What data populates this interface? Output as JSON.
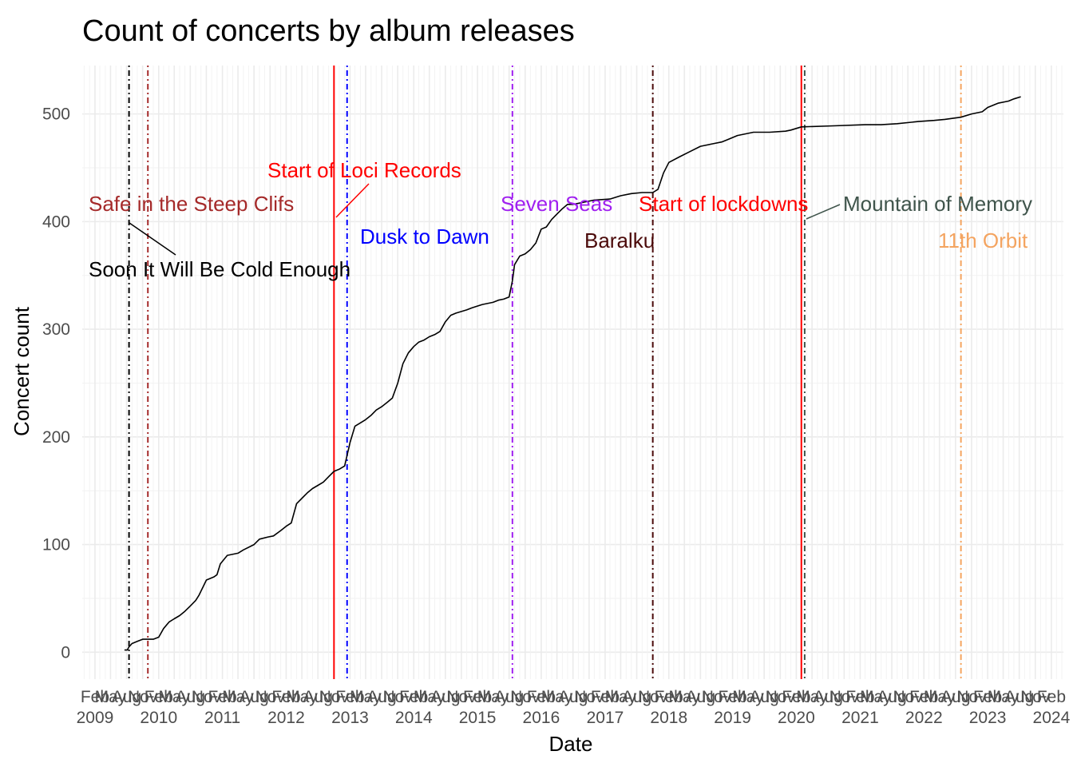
{
  "chart_data": {
    "type": "line",
    "title": "Count of concerts by album releases",
    "xlabel": "Date",
    "ylabel": "Concert count",
    "ylim": [
      -25,
      545
    ],
    "xlim": [
      "2008-11-20",
      "2024-04-10"
    ],
    "grid": true,
    "y_ticks": [
      0,
      100,
      200,
      300,
      400,
      500
    ],
    "x_major_ticks": [
      "2009",
      "2010",
      "2011",
      "2012",
      "2013",
      "2014",
      "2015",
      "2016",
      "2017",
      "2018",
      "2019",
      "2020",
      "2021",
      "2022",
      "2023",
      "2024"
    ],
    "x_month_ticks": [
      "Feb",
      "May",
      "Aug",
      "Nov"
    ],
    "series": [
      {
        "color": "#000000",
        "x": [
          "2009-07-20",
          "2009-08-05",
          "2009-08-15",
          "2009-09-01",
          "2009-10-01",
          "2009-11-01",
          "2009-12-01",
          "2010-01-01",
          "2010-02-01",
          "2010-03-01",
          "2010-04-01",
          "2010-05-01",
          "2010-06-01",
          "2010-07-01",
          "2010-08-01",
          "2010-09-01",
          "2010-09-20",
          "2010-11-01",
          "2010-12-15",
          "2011-01-01",
          "2011-01-20",
          "2011-03-01",
          "2011-05-01",
          "2011-06-01",
          "2011-08-01",
          "2011-09-01",
          "2011-10-20",
          "2011-11-20",
          "2012-01-01",
          "2012-02-01",
          "2012-03-01",
          "2012-04-01",
          "2012-06-01",
          "2012-07-01",
          "2012-08-01",
          "2012-09-01",
          "2012-10-01",
          "2012-11-01",
          "2012-12-01",
          "2013-01-01",
          "2013-02-01",
          "2013-03-01",
          "2013-04-01",
          "2013-05-01",
          "2013-06-01",
          "2013-07-01",
          "2013-08-01",
          "2013-09-01",
          "2013-10-01",
          "2013-11-01",
          "2013-12-01",
          "2014-01-01",
          "2014-02-01",
          "2014-03-01",
          "2014-04-01",
          "2014-05-01",
          "2014-06-01",
          "2014-07-01",
          "2014-08-01",
          "2014-09-01",
          "2014-10-01",
          "2014-12-01",
          "2015-01-01",
          "2015-03-01",
          "2015-05-01",
          "2015-06-01",
          "2015-07-01",
          "2015-08-01",
          "2015-08-20",
          "2015-09-01",
          "2015-10-01",
          "2015-11-01",
          "2015-12-01",
          "2016-01-01",
          "2016-02-01",
          "2016-03-01",
          "2016-04-01",
          "2016-05-01",
          "2016-06-01",
          "2016-07-01",
          "2016-08-01",
          "2016-10-01",
          "2016-12-01",
          "2017-03-01",
          "2017-05-01",
          "2017-07-01",
          "2017-09-01",
          "2017-11-01",
          "2017-12-01",
          "2018-01-01",
          "2018-02-01",
          "2018-04-01",
          "2018-06-01",
          "2018-08-01",
          "2018-10-01",
          "2018-12-01",
          "2019-01-01",
          "2019-03-01",
          "2019-05-01",
          "2019-06-01",
          "2019-09-01",
          "2019-12-01",
          "2020-01-01",
          "2020-03-01",
          "2020-09-01",
          "2021-03-01",
          "2021-06-01",
          "2021-09-01",
          "2022-01-01",
          "2022-04-01",
          "2022-06-01",
          "2022-09-01",
          "2022-11-01",
          "2023-01-01",
          "2023-02-01",
          "2023-04-01",
          "2023-06-01",
          "2023-07-01",
          "2023-08-10"
        ],
        "y": [
          2,
          2,
          5,
          8,
          10,
          12,
          12,
          12,
          14,
          22,
          28,
          31,
          34,
          38,
          43,
          48,
          53,
          67,
          70,
          72,
          82,
          90,
          92,
          95,
          100,
          105,
          107,
          108,
          113,
          117,
          120,
          138,
          148,
          152,
          155,
          158,
          163,
          168,
          170,
          173,
          195,
          210,
          213,
          216,
          220,
          225,
          228,
          232,
          236,
          250,
          268,
          278,
          284,
          288,
          290,
          293,
          295,
          298,
          307,
          313,
          315,
          318,
          320,
          323,
          325,
          327,
          328,
          330,
          345,
          360,
          368,
          370,
          374,
          380,
          393,
          395,
          402,
          407,
          412,
          416,
          416,
          418,
          420,
          421,
          424,
          426,
          427,
          427,
          430,
          445,
          455,
          460,
          465,
          470,
          472,
          474,
          476,
          480,
          482,
          483,
          483,
          484,
          485,
          488,
          489,
          490,
          490,
          491,
          493,
          494,
          495,
          497,
          500,
          502,
          506,
          510,
          512,
          514,
          516
        ]
      }
    ],
    "events": [
      {
        "date": "2009-08-15",
        "label": "Soon It Will Be Cold Enough",
        "color": "#000000",
        "line": "dotdash"
      },
      {
        "date": "2009-12-01",
        "label": "Safe in the Steep Clifs",
        "color": "#a52a2a",
        "line": "dotdash"
      },
      {
        "date": "2012-11-01",
        "label": "Start of Loci Records",
        "color": "#ff0000",
        "line": "solid"
      },
      {
        "date": "2013-01-15",
        "label": "Dusk to Dawn",
        "color": "#0000ff",
        "line": "dotdash"
      },
      {
        "date": "2015-08-20",
        "label": "Seven Seas",
        "color": "#a020f0",
        "line": "dotdash"
      },
      {
        "date": "2017-11-01",
        "label": "Baralku",
        "color": "#4b0a0a",
        "line": "dotdash"
      },
      {
        "date": "2020-03-01",
        "label": "Start of lockdowns",
        "color": "#ff0000",
        "line": "solid"
      },
      {
        "date": "2020-03-20",
        "label": "Mountain of Memory",
        "color": "#3f544b",
        "line": "dotdash"
      },
      {
        "date": "2022-09-01",
        "label": "11th Orbit",
        "color": "#f4a460",
        "line": "dotdash"
      }
    ]
  }
}
